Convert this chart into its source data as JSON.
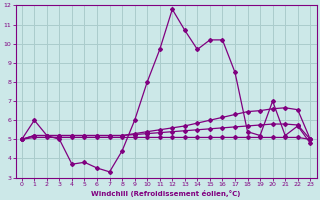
{
  "xlabel": "Windchill (Refroidissement éolien,°C)",
  "background_color": "#cce8e8",
  "grid_color": "#aacccc",
  "line_color": "#800080",
  "xlim": [
    -0.5,
    23.5
  ],
  "ylim": [
    3,
    12
  ],
  "xticks": [
    0,
    1,
    2,
    3,
    4,
    5,
    6,
    7,
    8,
    9,
    10,
    11,
    12,
    13,
    14,
    15,
    16,
    17,
    18,
    19,
    20,
    21,
    22,
    23
  ],
  "yticks": [
    3,
    4,
    5,
    6,
    7,
    8,
    9,
    10,
    11,
    12
  ],
  "curve1_x": [
    0,
    1,
    2,
    3,
    4,
    5,
    6,
    7,
    8,
    9,
    10,
    11,
    12,
    13,
    14,
    15,
    16,
    17,
    18,
    19,
    20,
    21,
    22,
    23
  ],
  "curve1_y": [
    5.0,
    6.0,
    5.2,
    5.0,
    3.7,
    3.8,
    3.5,
    3.3,
    4.4,
    6.0,
    8.0,
    9.7,
    11.8,
    10.7,
    9.7,
    10.2,
    10.2,
    8.5,
    5.4,
    5.2,
    7.0,
    5.2,
    5.7,
    4.8
  ],
  "curve2_x": [
    0,
    1,
    2,
    3,
    4,
    5,
    6,
    7,
    8,
    9,
    10,
    11,
    12,
    13,
    14,
    15,
    16,
    17,
    18,
    19,
    20,
    21,
    22,
    23
  ],
  "curve2_y": [
    5.0,
    5.1,
    5.1,
    5.1,
    5.1,
    5.1,
    5.1,
    5.1,
    5.1,
    5.1,
    5.1,
    5.1,
    5.1,
    5.1,
    5.1,
    5.1,
    5.1,
    5.1,
    5.1,
    5.1,
    5.1,
    5.1,
    5.1,
    5.0
  ],
  "curve3_x": [
    0,
    1,
    2,
    3,
    4,
    5,
    6,
    7,
    8,
    9,
    10,
    11,
    12,
    13,
    14,
    15,
    16,
    17,
    18,
    19,
    20,
    21,
    22,
    23
  ],
  "curve3_y": [
    5.0,
    5.2,
    5.2,
    5.2,
    5.2,
    5.2,
    5.2,
    5.2,
    5.2,
    5.25,
    5.3,
    5.35,
    5.4,
    5.45,
    5.5,
    5.55,
    5.6,
    5.65,
    5.7,
    5.75,
    5.8,
    5.8,
    5.75,
    5.0
  ],
  "curve4_x": [
    0,
    1,
    2,
    3,
    4,
    5,
    6,
    7,
    8,
    9,
    10,
    11,
    12,
    13,
    14,
    15,
    16,
    17,
    18,
    19,
    20,
    21,
    22,
    23
  ],
  "curve4_y": [
    5.0,
    5.2,
    5.2,
    5.2,
    5.2,
    5.2,
    5.2,
    5.2,
    5.2,
    5.3,
    5.4,
    5.5,
    5.6,
    5.7,
    5.85,
    6.0,
    6.15,
    6.3,
    6.45,
    6.5,
    6.6,
    6.65,
    6.55,
    5.0
  ]
}
